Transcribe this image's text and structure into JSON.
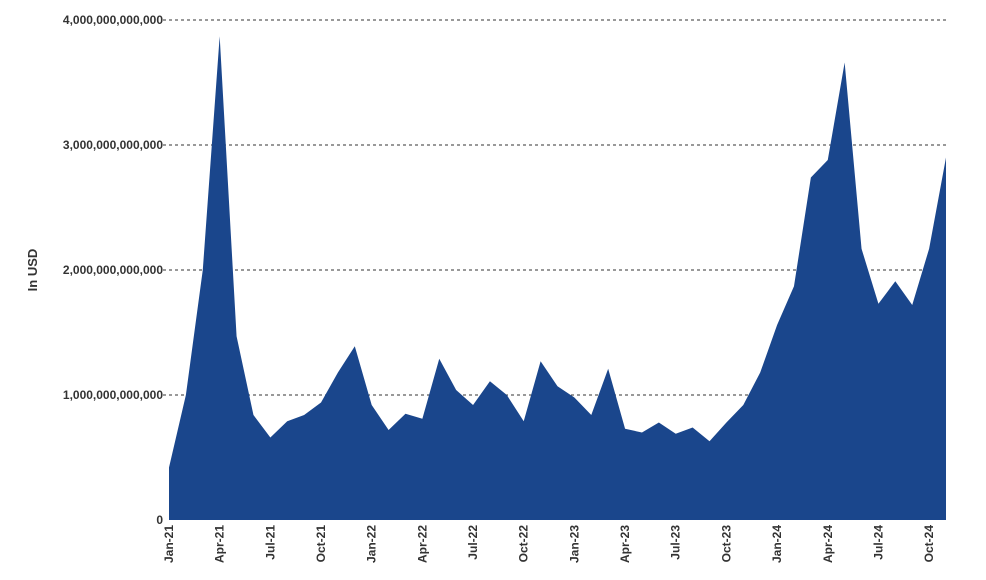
{
  "chart_data": {
    "type": "area",
    "title": "",
    "xlabel": "",
    "ylabel": "In USD",
    "ylim": [
      0,
      4000000000000
    ],
    "yticks": [
      0,
      1000000000000,
      2000000000000,
      3000000000000,
      4000000000000
    ],
    "ytick_labels": [
      "0",
      "1,000,000,000,000",
      "2,000,000,000,000",
      "3,000,000,000,000",
      "4,000,000,000,000"
    ],
    "grid": "horizontal dashed",
    "legend": "none",
    "colors": {
      "area": "#1a468c",
      "grid": "#333333",
      "text": "#333333"
    },
    "x": [
      "Jan-21",
      "Feb-21",
      "Mar-21",
      "Apr-21",
      "May-21",
      "Jun-21",
      "Jul-21",
      "Aug-21",
      "Sep-21",
      "Oct-21",
      "Nov-21",
      "Dec-21",
      "Jan-22",
      "Feb-22",
      "Mar-22",
      "Apr-22",
      "May-22",
      "Jun-22",
      "Jul-22",
      "Aug-22",
      "Sep-22",
      "Oct-22",
      "Nov-22",
      "Dec-22",
      "Jan-23",
      "Feb-23",
      "Mar-23",
      "Apr-23",
      "May-23",
      "Jun-23",
      "Jul-23",
      "Aug-23",
      "Sep-23",
      "Oct-23",
      "Nov-23",
      "Dec-23",
      "Jan-24",
      "Feb-24",
      "Mar-24",
      "Apr-24",
      "May-24",
      "Jun-24",
      "Jul-24",
      "Aug-24",
      "Sep-24",
      "Oct-24",
      "Nov-24"
    ],
    "xtick_labels": [
      "Jan-21",
      "Apr-21",
      "Jul-21",
      "Oct-21",
      "Jan-22",
      "Apr-22",
      "Jul-22",
      "Oct-22",
      "Jan-23",
      "Apr-23",
      "Jul-23",
      "Oct-23",
      "Jan-24",
      "Apr-24",
      "Jul-24",
      "Oct-24"
    ],
    "series": [
      {
        "values": [
          420000000000,
          1000000000000,
          2000000000000,
          3870000000000,
          1470000000000,
          840000000000,
          660000000000,
          790000000000,
          840000000000,
          940000000000,
          1180000000000,
          1390000000000,
          920000000000,
          720000000000,
          850000000000,
          810000000000,
          1290000000000,
          1040000000000,
          920000000000,
          1110000000000,
          1000000000000,
          790000000000,
          1270000000000,
          1070000000000,
          980000000000,
          840000000000,
          1210000000000,
          730000000000,
          700000000000,
          780000000000,
          690000000000,
          740000000000,
          630000000000,
          780000000000,
          920000000000,
          1180000000000,
          1560000000000,
          1870000000000,
          2740000000000,
          2880000000000,
          3660000000000,
          2170000000000,
          1730000000000,
          1910000000000,
          1720000000000,
          2170000000000,
          2900000000000
        ]
      }
    ]
  }
}
